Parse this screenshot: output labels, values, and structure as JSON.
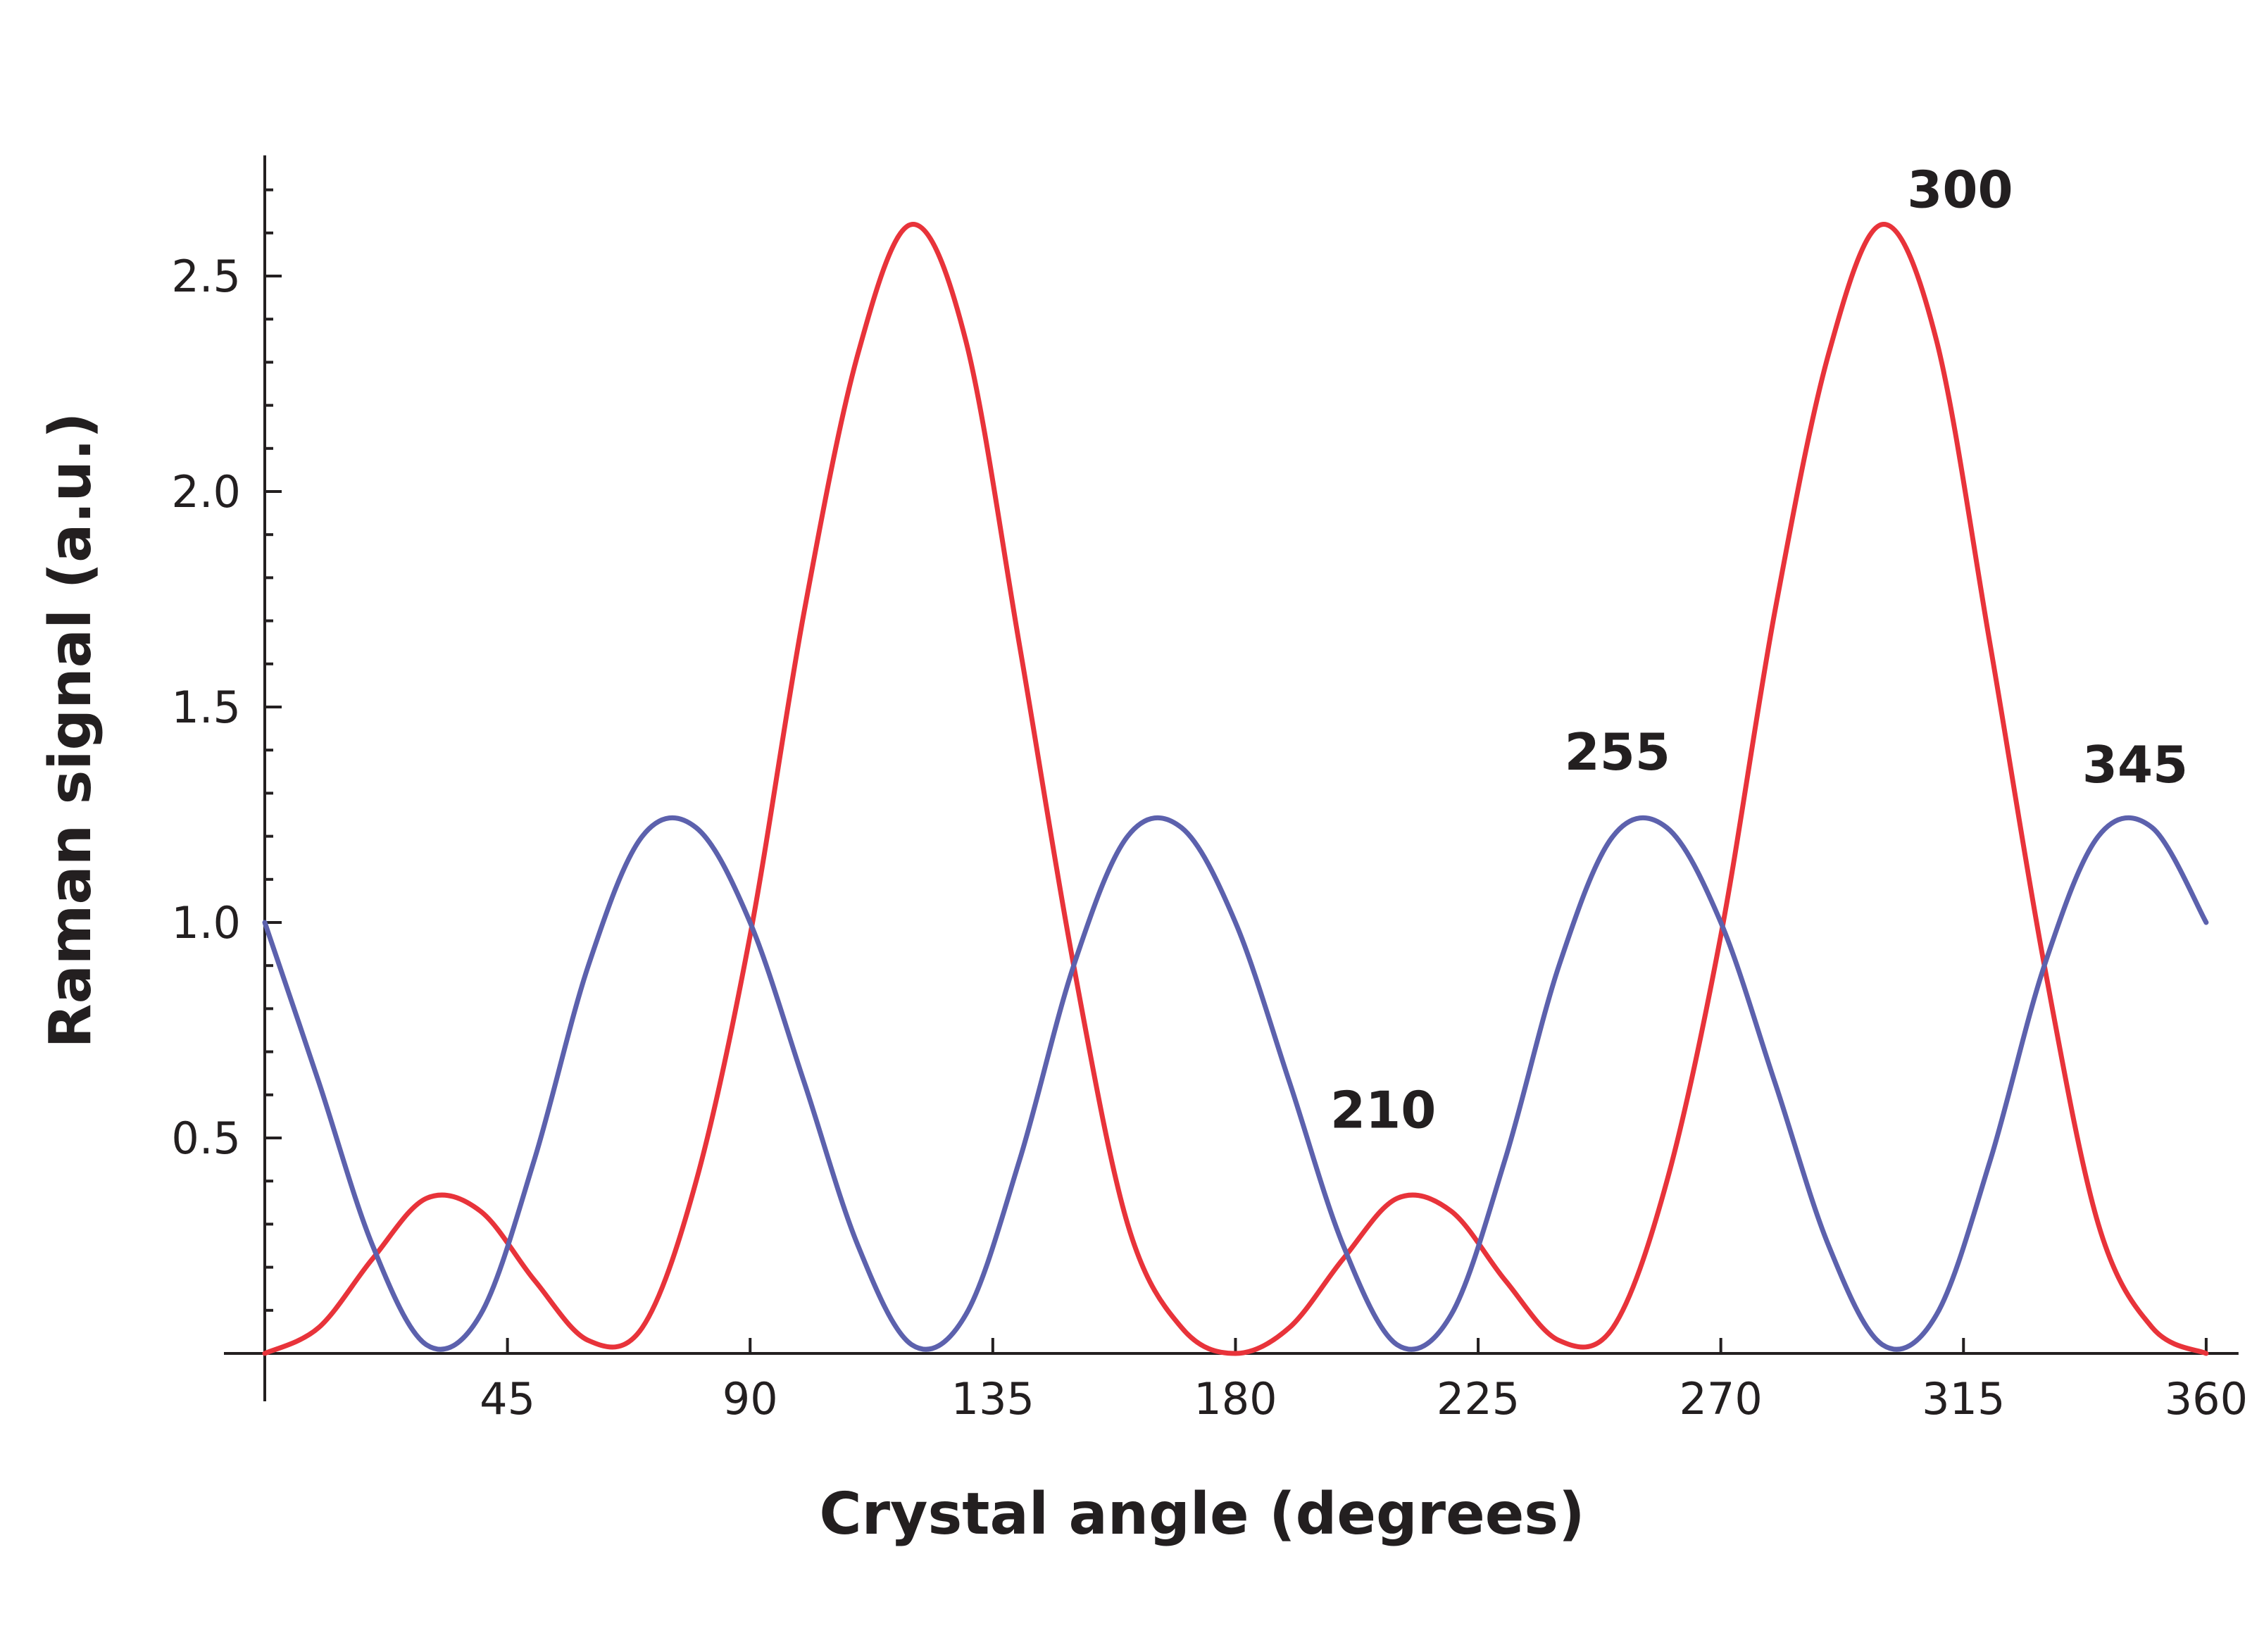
{
  "chart_data": {
    "type": "line",
    "title": "",
    "xlabel": "Crystal angle (degrees)",
    "ylabel": "Raman signal (a.u.)",
    "xlim": [
      0,
      366
    ],
    "ylim": [
      0,
      2.78
    ],
    "xticks": [
      45,
      90,
      135,
      180,
      225,
      270,
      315,
      360
    ],
    "xtick_labels": [
      "45",
      "90",
      "135",
      "180",
      "225",
      "270",
      "315",
      "360"
    ],
    "yticks": [
      0.5,
      1.0,
      1.5,
      2.0,
      2.5
    ],
    "ytick_labels": [
      "0.5",
      "1.0",
      "1.5",
      "2.0",
      "2.5"
    ],
    "grid": false,
    "series": [
      {
        "color": "#e8333a",
        "x": [
          0,
          10,
          20,
          30,
          40,
          50,
          60,
          70,
          80,
          90,
          100,
          110,
          120,
          130,
          140,
          150,
          160,
          170,
          180,
          190,
          200,
          210,
          220,
          230,
          240,
          250,
          260,
          270,
          280,
          290,
          300,
          310,
          320,
          330,
          340,
          350,
          360
        ],
        "values": [
          0,
          0.06,
          0.22,
          0.36,
          0.33,
          0.17,
          0.03,
          0.06,
          0.4,
          0.97,
          1.72,
          2.32,
          2.62,
          2.35,
          1.64,
          0.9,
          0.3,
          0.06,
          0,
          0.06,
          0.22,
          0.36,
          0.33,
          0.17,
          0.03,
          0.06,
          0.4,
          0.97,
          1.72,
          2.32,
          2.62,
          2.35,
          1.64,
          0.9,
          0.3,
          0.06,
          0
        ]
      },
      {
        "color": "#5c61ad",
        "x": [
          0,
          10,
          20,
          30,
          40,
          50,
          60,
          70,
          80,
          90,
          100,
          110,
          120,
          130,
          140,
          150,
          160,
          170,
          180,
          190,
          200,
          210,
          220,
          230,
          240,
          250,
          260,
          270,
          280,
          290,
          300,
          310,
          320,
          330,
          340,
          350,
          360
        ],
        "values": [
          1.0,
          0.63,
          0.25,
          0.02,
          0.09,
          0.45,
          0.9,
          1.2,
          1.22,
          1.0,
          0.63,
          0.25,
          0.02,
          0.09,
          0.45,
          0.9,
          1.2,
          1.22,
          1.0,
          0.63,
          0.25,
          0.02,
          0.09,
          0.45,
          0.9,
          1.2,
          1.22,
          1.0,
          0.63,
          0.25,
          0.02,
          0.09,
          0.45,
          0.9,
          1.2,
          1.22,
          1.0
        ]
      }
    ],
    "annotations": [
      {
        "text": "210",
        "x": 210,
        "y": 0.38
      },
      {
        "text": "255",
        "x": 255,
        "y": 1.26
      },
      {
        "text": "300",
        "x": 300,
        "y": 2.62
      },
      {
        "text": "345",
        "x": 345,
        "y": 1.26
      }
    ]
  }
}
